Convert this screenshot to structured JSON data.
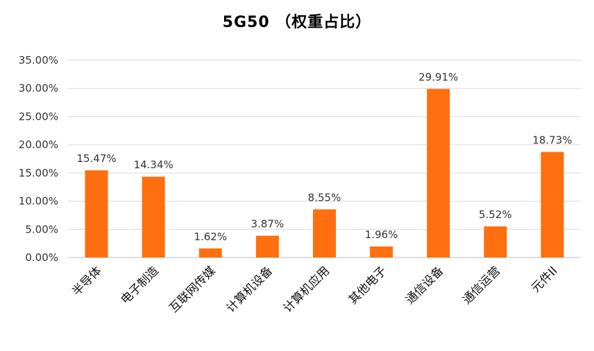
{
  "chart_data": {
    "type": "bar",
    "title": "5G50 （权重占比）",
    "categories": [
      "半导体",
      "电子制造",
      "互联网传媒",
      "计算机设备",
      "计算机应用",
      "其他电子",
      "通信设备",
      "通信运营",
      "元件II"
    ],
    "values": [
      15.47,
      14.34,
      1.62,
      3.87,
      8.55,
      1.96,
      29.91,
      5.52,
      18.73
    ],
    "data_labels": [
      "15.47%",
      "14.34%",
      "1.62%",
      "3.87%",
      "8.55%",
      "1.96%",
      "29.91%",
      "5.52%",
      "18.73%"
    ],
    "y_ticks": [
      "0.00%",
      "5.00%",
      "10.00%",
      "15.00%",
      "20.00%",
      "25.00%",
      "30.00%",
      "35.00%"
    ],
    "ylim": [
      0,
      35
    ],
    "xlabel": "",
    "ylabel": "",
    "grid": true,
    "legend": "none",
    "colors": {
      "bar": "#FF6F0F",
      "grid": "#D9D9D9"
    }
  }
}
